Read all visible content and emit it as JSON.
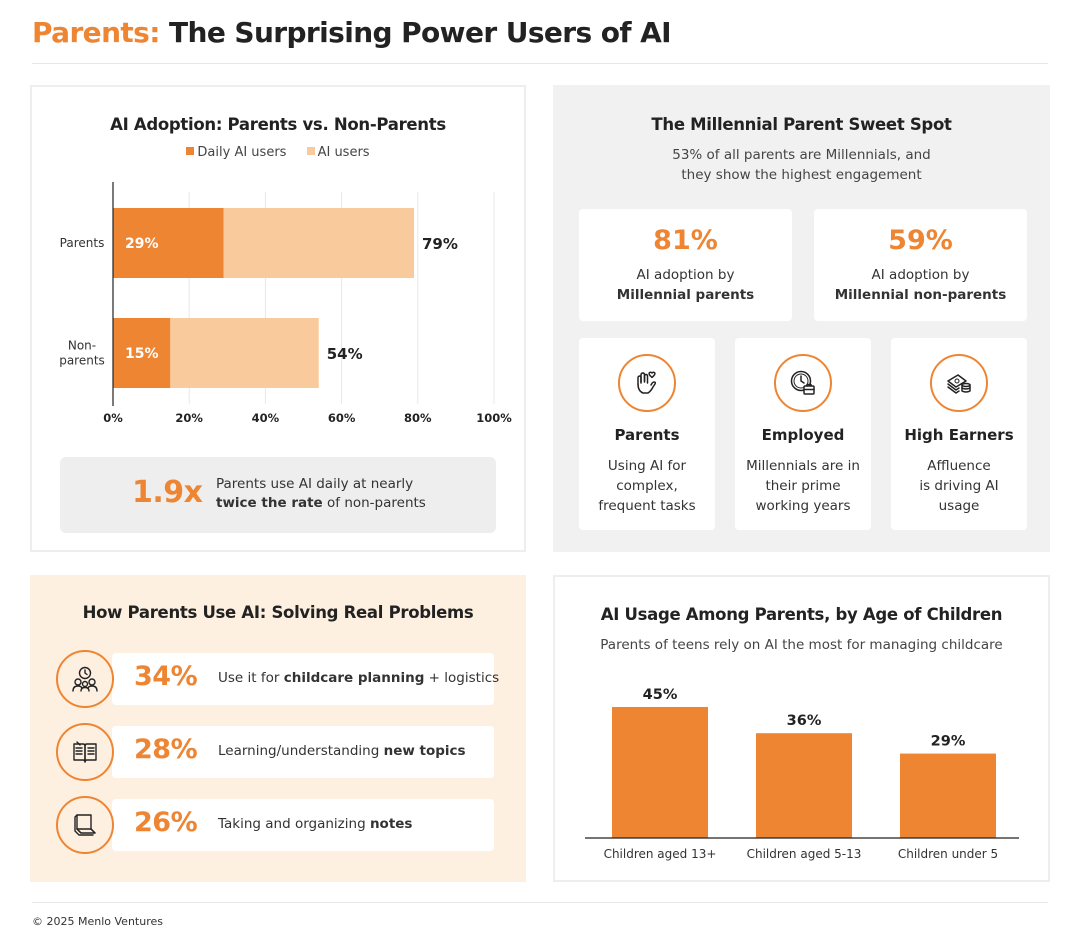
{
  "title": {
    "accent": "Parents:",
    "rest": " The Surprising Power Users of AI"
  },
  "colors": {
    "accent": "#ee8533",
    "accent_light": "#f9cb9c",
    "cream": "#fdf0e1",
    "gray": "#f1f1f1"
  },
  "footer": "© 2025 Menlo Ventures",
  "adoption": {
    "title": "AI Adoption: Parents vs. Non-Parents",
    "legend": {
      "daily": "Daily AI users",
      "ai": "AI users"
    },
    "callout": {
      "big": "1.9x",
      "line1": "Parents use AI daily at nearly",
      "bold": "twice the rate",
      "rest": " of non-parents"
    }
  },
  "sweet_spot": {
    "title": "The Millennial Parent Sweet Spot",
    "subtitle_line1": "53% of all parents are Millennials, and",
    "subtitle_line2": "they show the highest engagement",
    "stats": [
      {
        "pct": "81%",
        "line1": "AI adoption by",
        "line2": "Millennial parents"
      },
      {
        "pct": "59%",
        "line1": "AI adoption by",
        "line2": "Millennial non-parents"
      }
    ],
    "traits": [
      {
        "icon": "hand-heart-icon",
        "title": "Parents",
        "lines": [
          "Using AI for",
          "complex,",
          "frequent tasks"
        ]
      },
      {
        "icon": "clock-briefcase-icon",
        "title": "Employed",
        "lines": [
          "Millennials are in",
          "their prime",
          "working years"
        ]
      },
      {
        "icon": "money-stack-icon",
        "title": "High Earners",
        "lines": [
          "Affluence",
          "is driving AI",
          "usage"
        ]
      }
    ]
  },
  "usage": {
    "title": "How Parents Use AI: Solving Real Problems",
    "rows": [
      {
        "icon": "family-clock-icon",
        "pct": "34%",
        "pre": "Use it for ",
        "bold": "childcare planning",
        "post": " + logistics"
      },
      {
        "icon": "open-book-icon",
        "pct": "28%",
        "pre": "Learning/understanding ",
        "bold": "new topics",
        "post": ""
      },
      {
        "icon": "notepad-icon",
        "pct": "26%",
        "pre": "Taking and organizing ",
        "bold": "notes",
        "post": ""
      }
    ]
  },
  "chart_data": [
    {
      "type": "bar",
      "orientation": "horizontal",
      "title": "AI Adoption: Parents vs. Non-Parents",
      "categories": [
        "Parents",
        "Non-parents"
      ],
      "category_labels": [
        [
          "Parents"
        ],
        [
          "Non-",
          "parents"
        ]
      ],
      "series": [
        {
          "name": "Daily AI users",
          "values": [
            29,
            15
          ],
          "color": "#ee8533"
        },
        {
          "name": "AI users",
          "values": [
            79,
            54
          ],
          "color": "#f9cb9c"
        }
      ],
      "data_labels": {
        "inner": [
          "29%",
          "15%"
        ],
        "outer": [
          "79%",
          "54%"
        ]
      },
      "xlim": [
        0,
        100
      ],
      "xticks": [
        "0%",
        "20%",
        "40%",
        "60%",
        "80%",
        "100%"
      ],
      "grid": true,
      "legend": "top-center"
    },
    {
      "type": "bar",
      "title": "AI Usage Among Parents, by Age of Children",
      "subtitle": "Parents of teens rely on AI the most for managing childcare",
      "categories": [
        "Children aged 13+",
        "Children aged 5-13",
        "Children under 5"
      ],
      "values": [
        45,
        36,
        29
      ],
      "data_labels": [
        "45%",
        "36%",
        "29%"
      ],
      "ylim": [
        0,
        45
      ],
      "grid": false
    }
  ]
}
